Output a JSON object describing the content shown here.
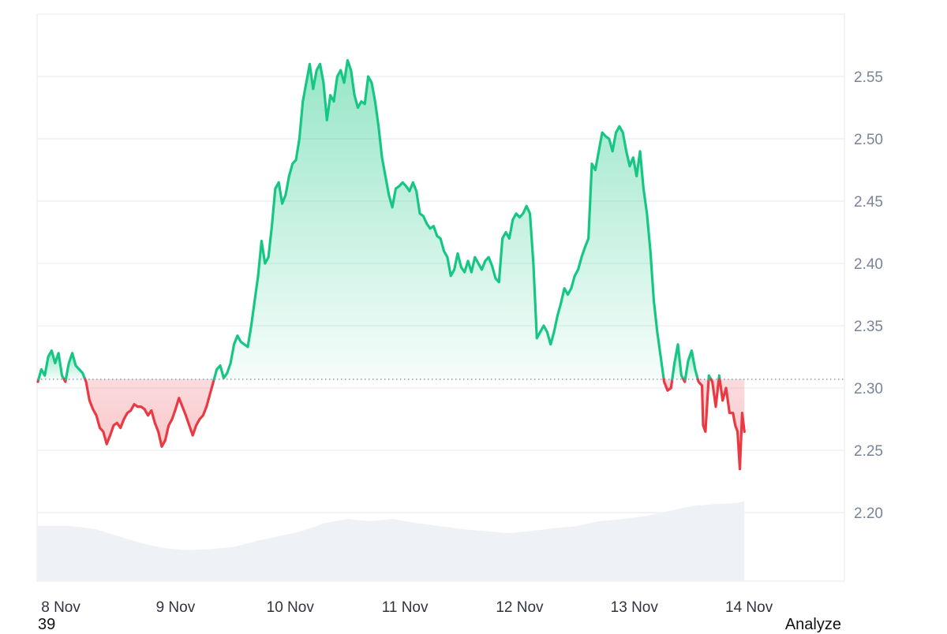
{
  "chart_data": {
    "type": "area",
    "baseline": 2.307,
    "ylim": [
      2.145,
      2.6
    ],
    "y_ticks": [
      "2.55",
      "2.50",
      "2.45",
      "2.40",
      "2.35",
      "2.30",
      "2.25",
      "2.20"
    ],
    "y_tick_values": [
      2.55,
      2.5,
      2.45,
      2.4,
      2.35,
      2.3,
      2.25,
      2.2
    ],
    "x_ticks": [
      "8 Nov",
      "9 Nov",
      "10 Nov",
      "11 Nov",
      "12 Nov",
      "13 Nov",
      "14 Nov"
    ],
    "x_tick_positions": [
      0.2,
      1.2,
      2.2,
      3.2,
      4.2,
      5.2,
      6.2
    ],
    "x_range": [
      0,
      6.55
    ],
    "colors": {
      "up": "#16c784",
      "down": "#ea3943",
      "volume": "#eef1f5",
      "grid": "#e9ecef"
    },
    "series": [
      {
        "values": [
          [
            0.0,
            2.305
          ],
          [
            0.03,
            2.315
          ],
          [
            0.06,
            2.31
          ],
          [
            0.09,
            2.325
          ],
          [
            0.12,
            2.33
          ],
          [
            0.15,
            2.32
          ],
          [
            0.18,
            2.328
          ],
          [
            0.21,
            2.31
          ],
          [
            0.24,
            2.305
          ],
          [
            0.27,
            2.32
          ],
          [
            0.3,
            2.328
          ],
          [
            0.33,
            2.318
          ],
          [
            0.36,
            2.315
          ],
          [
            0.39,
            2.312
          ],
          [
            0.42,
            2.305
          ],
          [
            0.45,
            2.29
          ],
          [
            0.48,
            2.283
          ],
          [
            0.51,
            2.278
          ],
          [
            0.54,
            2.268
          ],
          [
            0.57,
            2.265
          ],
          [
            0.6,
            2.255
          ],
          [
            0.63,
            2.262
          ],
          [
            0.66,
            2.27
          ],
          [
            0.69,
            2.272
          ],
          [
            0.72,
            2.268
          ],
          [
            0.75,
            2.275
          ],
          [
            0.78,
            2.28
          ],
          [
            0.81,
            2.282
          ],
          [
            0.84,
            2.287
          ],
          [
            0.87,
            2.285
          ],
          [
            0.9,
            2.285
          ],
          [
            0.93,
            2.283
          ],
          [
            0.96,
            2.278
          ],
          [
            0.99,
            2.282
          ],
          [
            1.02,
            2.272
          ],
          [
            1.05,
            2.265
          ],
          [
            1.08,
            2.253
          ],
          [
            1.11,
            2.258
          ],
          [
            1.14,
            2.27
          ],
          [
            1.17,
            2.275
          ],
          [
            1.2,
            2.283
          ],
          [
            1.23,
            2.292
          ],
          [
            1.26,
            2.285
          ],
          [
            1.29,
            2.278
          ],
          [
            1.32,
            2.27
          ],
          [
            1.35,
            2.262
          ],
          [
            1.38,
            2.27
          ],
          [
            1.41,
            2.275
          ],
          [
            1.44,
            2.278
          ],
          [
            1.47,
            2.285
          ],
          [
            1.5,
            2.295
          ],
          [
            1.53,
            2.305
          ],
          [
            1.56,
            2.315
          ],
          [
            1.59,
            2.318
          ],
          [
            1.62,
            2.308
          ],
          [
            1.65,
            2.312
          ],
          [
            1.68,
            2.32
          ],
          [
            1.71,
            2.335
          ],
          [
            1.74,
            2.342
          ],
          [
            1.77,
            2.337
          ],
          [
            1.8,
            2.335
          ],
          [
            1.83,
            2.333
          ],
          [
            1.86,
            2.35
          ],
          [
            1.89,
            2.37
          ],
          [
            1.92,
            2.39
          ],
          [
            1.95,
            2.418
          ],
          [
            1.98,
            2.4
          ],
          [
            2.01,
            2.405
          ],
          [
            2.04,
            2.43
          ],
          [
            2.07,
            2.46
          ],
          [
            2.1,
            2.465
          ],
          [
            2.13,
            2.448
          ],
          [
            2.16,
            2.455
          ],
          [
            2.19,
            2.47
          ],
          [
            2.22,
            2.48
          ],
          [
            2.25,
            2.483
          ],
          [
            2.28,
            2.5
          ],
          [
            2.31,
            2.53
          ],
          [
            2.34,
            2.545
          ],
          [
            2.37,
            2.56
          ],
          [
            2.4,
            2.54
          ],
          [
            2.43,
            2.555
          ],
          [
            2.46,
            2.56
          ],
          [
            2.49,
            2.545
          ],
          [
            2.52,
            2.515
          ],
          [
            2.55,
            2.535
          ],
          [
            2.58,
            2.53
          ],
          [
            2.61,
            2.55
          ],
          [
            2.64,
            2.555
          ],
          [
            2.67,
            2.545
          ],
          [
            2.7,
            2.563
          ],
          [
            2.73,
            2.555
          ],
          [
            2.76,
            2.535
          ],
          [
            2.79,
            2.525
          ],
          [
            2.82,
            2.53
          ],
          [
            2.85,
            2.528
          ],
          [
            2.88,
            2.55
          ],
          [
            2.91,
            2.545
          ],
          [
            2.94,
            2.53
          ],
          [
            2.97,
            2.51
          ],
          [
            3.0,
            2.485
          ],
          [
            3.03,
            2.47
          ],
          [
            3.06,
            2.455
          ],
          [
            3.09,
            2.445
          ],
          [
            3.12,
            2.46
          ],
          [
            3.15,
            2.462
          ],
          [
            3.18,
            2.465
          ],
          [
            3.21,
            2.462
          ],
          [
            3.24,
            2.458
          ],
          [
            3.27,
            2.465
          ],
          [
            3.3,
            2.458
          ],
          [
            3.33,
            2.44
          ],
          [
            3.36,
            2.438
          ],
          [
            3.39,
            2.432
          ],
          [
            3.42,
            2.428
          ],
          [
            3.45,
            2.43
          ],
          [
            3.48,
            2.422
          ],
          [
            3.51,
            2.42
          ],
          [
            3.54,
            2.41
          ],
          [
            3.57,
            2.405
          ],
          [
            3.6,
            2.39
          ],
          [
            3.63,
            2.395
          ],
          [
            3.66,
            2.408
          ],
          [
            3.69,
            2.397
          ],
          [
            3.72,
            2.393
          ],
          [
            3.75,
            2.402
          ],
          [
            3.78,
            2.393
          ],
          [
            3.81,
            2.405
          ],
          [
            3.84,
            2.4
          ],
          [
            3.87,
            2.395
          ],
          [
            3.9,
            2.402
          ],
          [
            3.93,
            2.405
          ],
          [
            3.96,
            2.398
          ],
          [
            3.99,
            2.388
          ],
          [
            4.02,
            2.385
          ],
          [
            4.05,
            2.42
          ],
          [
            4.08,
            2.425
          ],
          [
            4.11,
            2.42
          ],
          [
            4.14,
            2.435
          ],
          [
            4.17,
            2.44
          ],
          [
            4.2,
            2.437
          ],
          [
            4.23,
            2.44
          ],
          [
            4.26,
            2.446
          ],
          [
            4.29,
            2.44
          ],
          [
            4.32,
            2.4
          ],
          [
            4.35,
            2.34
          ],
          [
            4.38,
            2.345
          ],
          [
            4.41,
            2.35
          ],
          [
            4.44,
            2.345
          ],
          [
            4.47,
            2.335
          ],
          [
            4.5,
            2.345
          ],
          [
            4.53,
            2.358
          ],
          [
            4.56,
            2.368
          ],
          [
            4.59,
            2.38
          ],
          [
            4.62,
            2.375
          ],
          [
            4.65,
            2.38
          ],
          [
            4.68,
            2.39
          ],
          [
            4.71,
            2.395
          ],
          [
            4.74,
            2.405
          ],
          [
            4.77,
            2.413
          ],
          [
            4.8,
            2.42
          ],
          [
            4.83,
            2.48
          ],
          [
            4.86,
            2.475
          ],
          [
            4.89,
            2.49
          ],
          [
            4.92,
            2.505
          ],
          [
            4.95,
            2.502
          ],
          [
            4.98,
            2.5
          ],
          [
            5.01,
            2.49
          ],
          [
            5.04,
            2.505
          ],
          [
            5.07,
            2.51
          ],
          [
            5.1,
            2.505
          ],
          [
            5.13,
            2.49
          ],
          [
            5.16,
            2.478
          ],
          [
            5.19,
            2.485
          ],
          [
            5.22,
            2.47
          ],
          [
            5.25,
            2.49
          ],
          [
            5.28,
            2.46
          ],
          [
            5.31,
            2.44
          ],
          [
            5.34,
            2.41
          ],
          [
            5.37,
            2.37
          ],
          [
            5.4,
            2.345
          ],
          [
            5.43,
            2.325
          ],
          [
            5.46,
            2.305
          ],
          [
            5.49,
            2.298
          ],
          [
            5.52,
            2.3
          ],
          [
            5.55,
            2.32
          ],
          [
            5.58,
            2.335
          ],
          [
            5.61,
            2.31
          ],
          [
            5.64,
            2.305
          ],
          [
            5.67,
            2.322
          ],
          [
            5.7,
            2.33
          ],
          [
            5.73,
            2.315
          ],
          [
            5.76,
            2.305
          ],
          [
            5.79,
            2.302
          ],
          [
            5.8,
            2.27
          ],
          [
            5.82,
            2.265
          ],
          [
            5.85,
            2.31
          ],
          [
            5.88,
            2.305
          ],
          [
            5.91,
            2.285
          ],
          [
            5.94,
            2.31
          ],
          [
            5.97,
            2.29
          ],
          [
            6.0,
            2.3
          ],
          [
            6.03,
            2.28
          ],
          [
            6.06,
            2.28
          ],
          [
            6.08,
            2.27
          ],
          [
            6.1,
            2.265
          ],
          [
            6.12,
            2.235
          ],
          [
            6.14,
            2.28
          ],
          [
            6.16,
            2.265
          ]
        ]
      }
    ],
    "volume": {
      "values": [
        [
          0.0,
          0.55
        ],
        [
          0.3,
          0.55
        ],
        [
          0.5,
          0.52
        ],
        [
          0.7,
          0.45
        ],
        [
          0.9,
          0.38
        ],
        [
          1.1,
          0.33
        ],
        [
          1.3,
          0.31
        ],
        [
          1.5,
          0.32
        ],
        [
          1.7,
          0.34
        ],
        [
          1.9,
          0.4
        ],
        [
          2.1,
          0.45
        ],
        [
          2.3,
          0.5
        ],
        [
          2.5,
          0.58
        ],
        [
          2.7,
          0.62
        ],
        [
          2.9,
          0.6
        ],
        [
          3.1,
          0.62
        ],
        [
          3.3,
          0.58
        ],
        [
          3.5,
          0.55
        ],
        [
          3.7,
          0.52
        ],
        [
          3.9,
          0.5
        ],
        [
          4.1,
          0.48
        ],
        [
          4.3,
          0.5
        ],
        [
          4.5,
          0.53
        ],
        [
          4.7,
          0.55
        ],
        [
          4.9,
          0.6
        ],
        [
          5.1,
          0.62
        ],
        [
          5.3,
          0.65
        ],
        [
          5.5,
          0.7
        ],
        [
          5.7,
          0.75
        ],
        [
          5.9,
          0.77
        ],
        [
          6.1,
          0.78
        ],
        [
          6.16,
          0.8
        ]
      ]
    }
  },
  "footer": {
    "left_text": "39",
    "right_text": "Analyze"
  }
}
